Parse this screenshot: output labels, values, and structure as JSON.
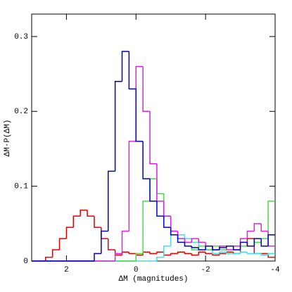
{
  "chart_data": {
    "type": "histogram",
    "xlabel": "ΔM (magnitudes)",
    "ylabel": "ΔM·P(ΔM)",
    "xlim": [
      3,
      -4
    ],
    "ylim": [
      0,
      0.33
    ],
    "xticks": [
      2,
      0,
      -2,
      -4
    ],
    "yticks": [
      0,
      0.1,
      0.2,
      0.3
    ],
    "bins": [
      3,
      2.8,
      2.6,
      2.4,
      2.2,
      2,
      1.8,
      1.6,
      1.4,
      1.2,
      1,
      0.8,
      0.6,
      0.4,
      0.2,
      0,
      -0.2,
      -0.4,
      -0.6,
      -0.8,
      -1,
      -1.2,
      -1.4,
      -1.6,
      -1.8,
      -2,
      -2.2,
      -2.4,
      -2.6,
      -2.8,
      -3,
      -3.2,
      -3.4,
      -3.6,
      -3.8,
      -4
    ],
    "series": [
      {
        "color": "#e00000",
        "values": [
          0,
          0,
          0.005,
          0.015,
          0.03,
          0.045,
          0.06,
          0.068,
          0.06,
          0.045,
          0.03,
          0.015,
          0.008,
          0.012,
          0.01,
          0.008,
          0.012,
          0.01,
          0.012,
          0.008,
          0.01,
          0.012,
          0.01,
          0.008,
          0.012,
          0.01,
          0.008,
          0.01,
          0.012,
          0.01,
          0.02,
          0.03,
          0.01,
          0.01,
          0.005
        ]
      },
      {
        "color": "#40e0e0",
        "values": [
          0,
          0,
          0,
          0,
          0,
          0,
          0,
          0,
          0,
          0,
          0,
          0,
          0,
          0,
          0,
          0,
          0,
          0,
          0.005,
          0.02,
          0.04,
          0.035,
          0.03,
          0.025,
          0.02,
          0.015,
          0.01,
          0.012,
          0.01,
          0.01,
          0.012,
          0.01,
          0.01,
          0.008,
          0.01
        ]
      },
      {
        "color": "#40e040",
        "values": [
          0,
          0,
          0,
          0,
          0,
          0,
          0,
          0,
          0,
          0,
          0,
          0,
          0,
          0,
          0,
          0.01,
          0.08,
          0.11,
          0.09,
          0.06,
          0.04,
          0.03,
          0.02,
          0.015,
          0.02,
          0.015,
          0.02,
          0.015,
          0.02,
          0.015,
          0.02,
          0.02,
          0.025,
          0.03,
          0.08
        ]
      },
      {
        "color": "#e020e0",
        "values": [
          0,
          0,
          0,
          0,
          0,
          0,
          0,
          0,
          0,
          0,
          0,
          0,
          0.01,
          0.04,
          0.16,
          0.26,
          0.2,
          0.13,
          0.08,
          0.06,
          0.04,
          0.03,
          0.025,
          0.03,
          0.025,
          0.02,
          0.015,
          0.02,
          0.015,
          0.02,
          0.03,
          0.04,
          0.05,
          0.04,
          0.02
        ]
      },
      {
        "color": "#0000cc",
        "values": [
          0,
          0,
          0,
          0,
          0,
          0,
          0,
          0,
          0,
          0.01,
          0.04,
          0.12,
          0.24,
          0.28,
          0.23,
          0.16,
          0.11,
          0.08,
          0.06,
          0.045,
          0.035,
          0.025,
          0.02,
          0.018,
          0.015,
          0.02,
          0.015,
          0.018,
          0.02,
          0.015,
          0.025,
          0.02,
          0.03,
          0.02,
          0.035
        ]
      }
    ]
  }
}
